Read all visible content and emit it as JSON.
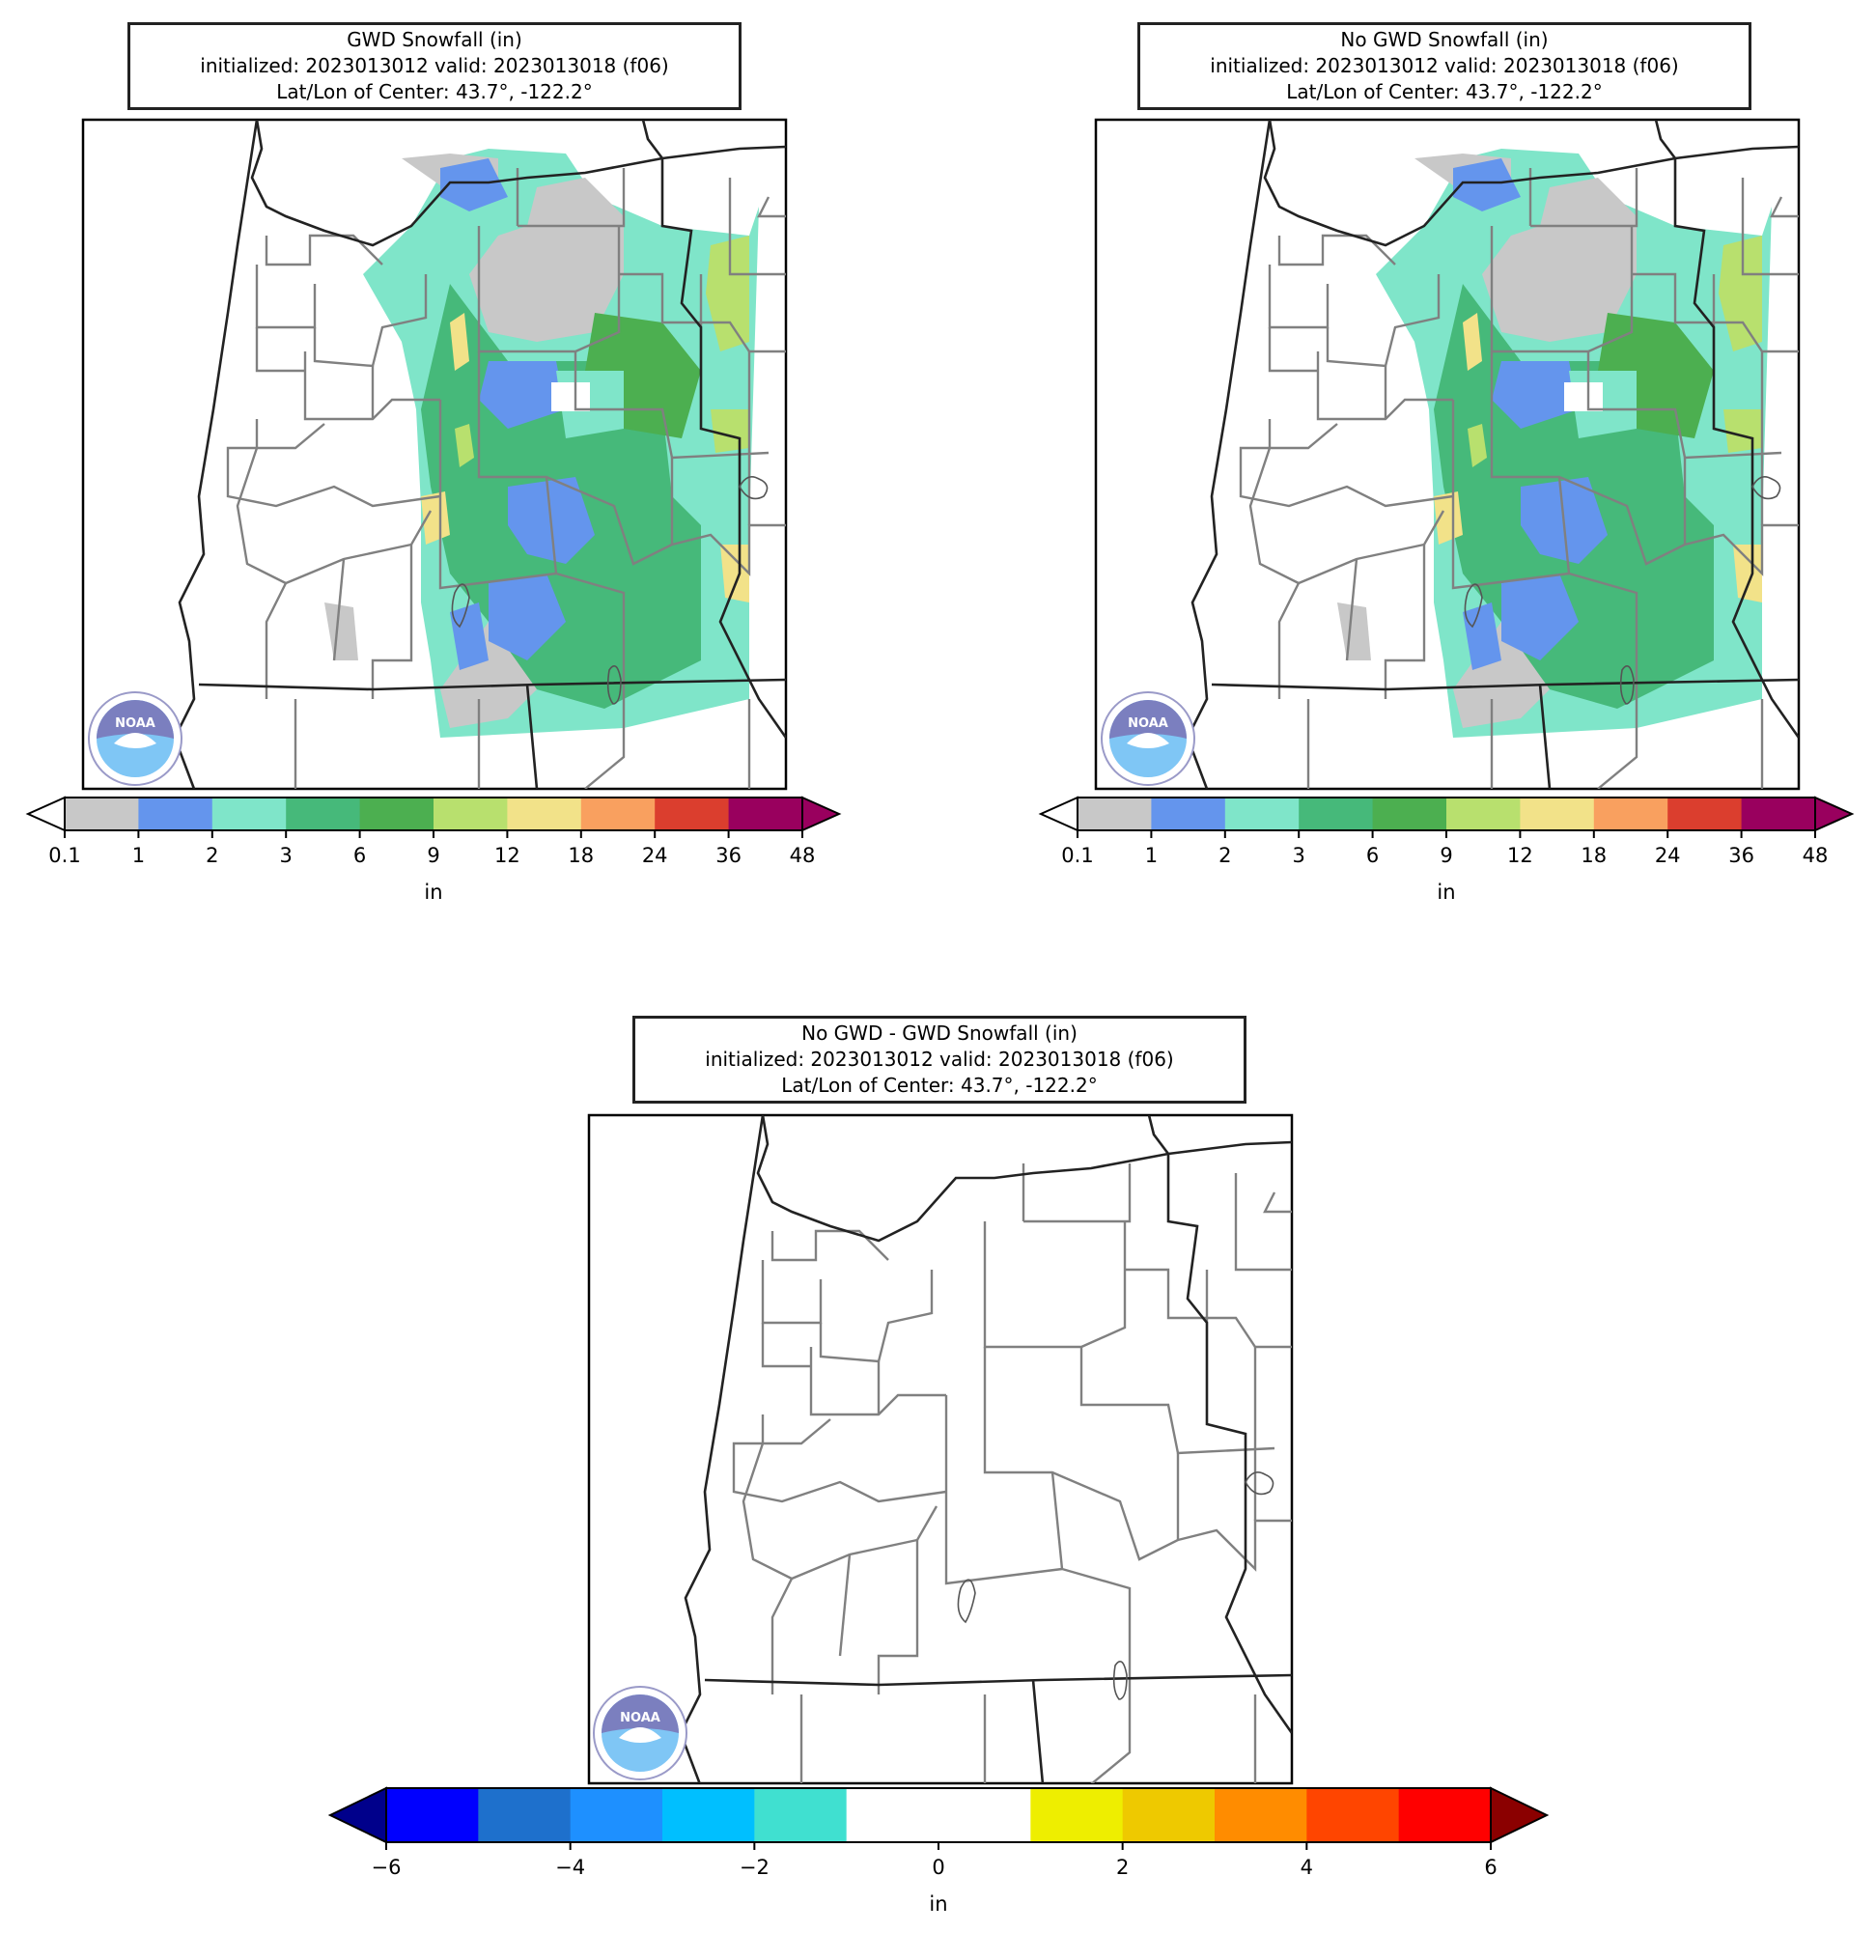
{
  "panels": [
    {
      "id": "gwd",
      "title_lines": [
        "GWD Snowfall (in)",
        "initialized: 2023013012 valid: 2023013018 (f06)",
        "Lat/Lon of Center: 43.7°, -122.2°"
      ],
      "logo_text": "NOAA"
    },
    {
      "id": "nogwd",
      "title_lines": [
        "No GWD Snowfall (in)",
        "initialized: 2023013012 valid: 2023013018 (f06)",
        "Lat/Lon of Center: 43.7°, -122.2°"
      ],
      "logo_text": "NOAA"
    },
    {
      "id": "diff",
      "title_lines": [
        "No GWD - GWD Snowfall (in)",
        "initialized: 2023013012 valid: 2023013018 (f06)",
        "Lat/Lon of Center: 43.7°, -122.2°"
      ],
      "logo_text": "NOAA"
    }
  ],
  "snow_colorbar": {
    "ticks": [
      "0.1",
      "1",
      "2",
      "3",
      "6",
      "9",
      "12",
      "18",
      "24",
      "36",
      "48"
    ],
    "colors": [
      "#c8c8c8",
      "#6495ed",
      "#7fe5c9",
      "#46b97a",
      "#4caf50",
      "#b8e06e",
      "#f2e289",
      "#f9a05f",
      "#db3e2e",
      "#99005e"
    ],
    "under_color": "#ffffff",
    "over_color": "#99005e",
    "unit": "in"
  },
  "diff_colorbar": {
    "ticks": [
      "−6",
      "−4",
      "−2",
      "0",
      "2",
      "4",
      "6"
    ],
    "colors": [
      "#0000ff",
      "#1e70cc",
      "#1e90ff",
      "#00bfff",
      "#40e0d0",
      "#ffffff",
      "#ffffff",
      "#eeee00",
      "#eec900",
      "#ff8c00",
      "#ff4500",
      "#ff0000"
    ],
    "under_color": "#00008b",
    "over_color": "#8b0000",
    "unit": "in"
  }
}
